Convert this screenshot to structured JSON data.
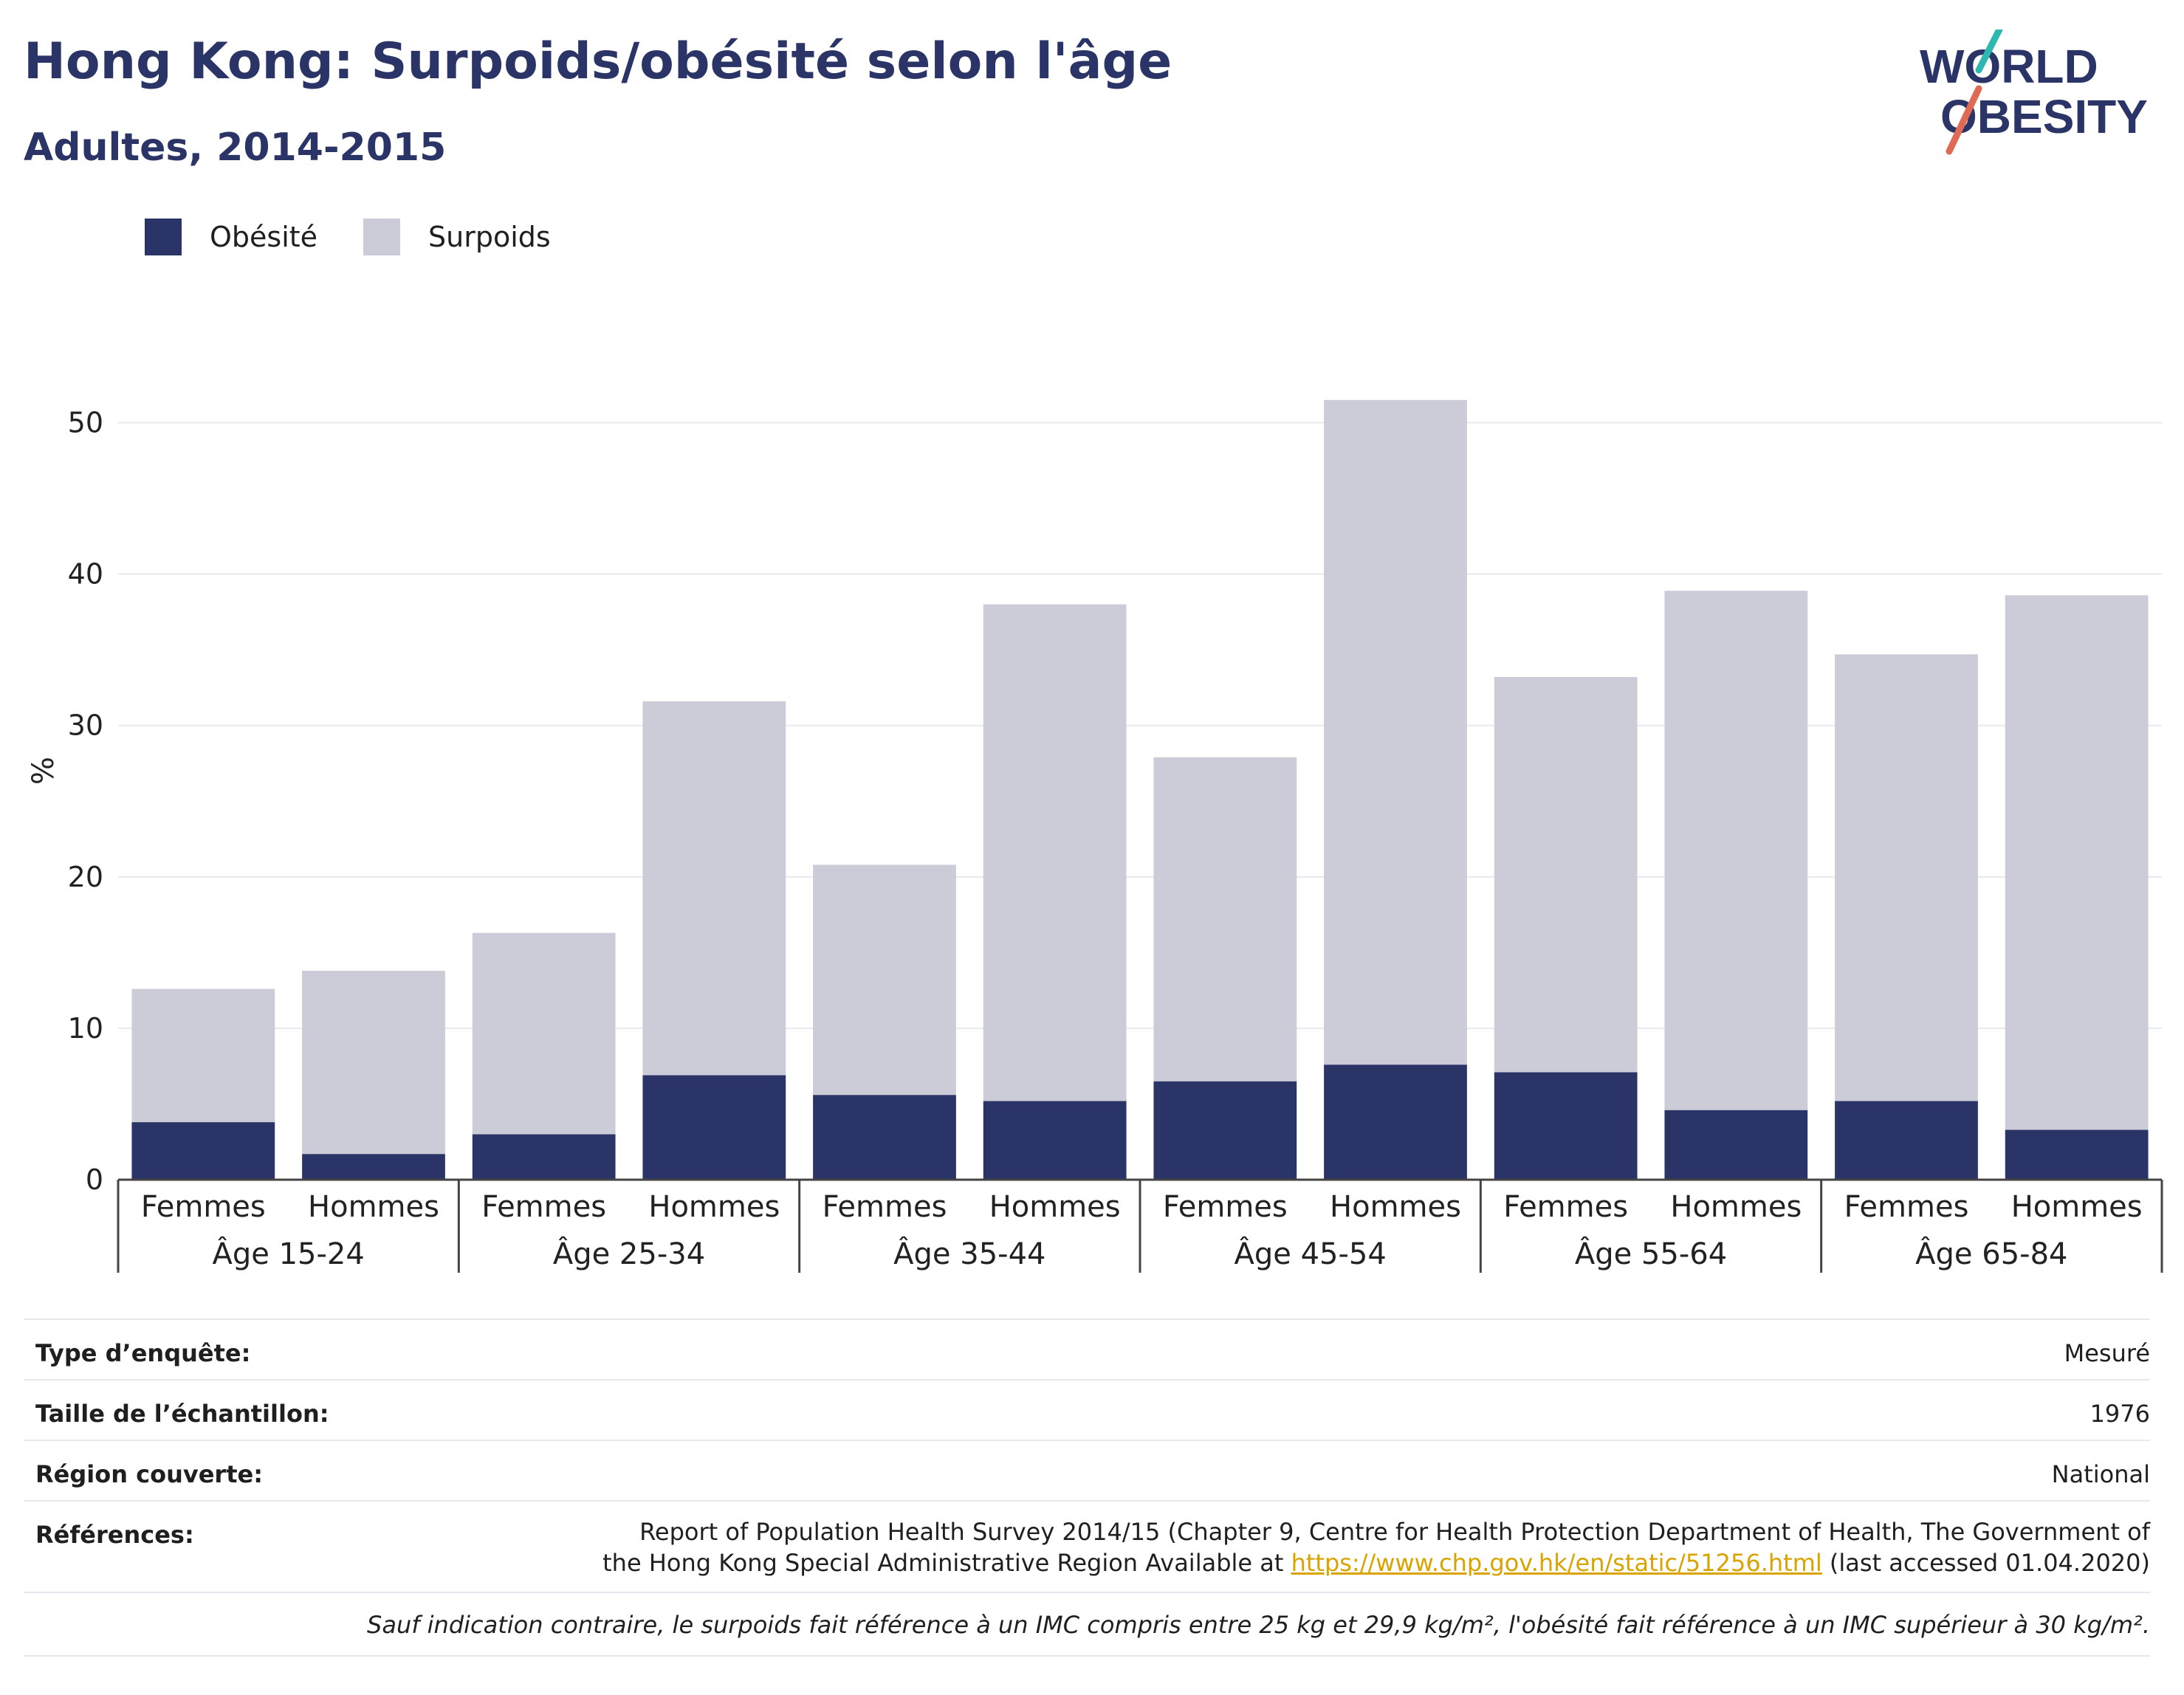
{
  "header": {
    "title": "Hong Kong: Surpoids/obésité selon l'âge",
    "subtitle": "Adultes, 2014-2015"
  },
  "logo": {
    "line1": "WORLD",
    "line2": "OBESITY"
  },
  "legend": [
    {
      "label": "Obésité",
      "color": "#2b3466"
    },
    {
      "label": "Surpoids",
      "color": "#cbccd8"
    }
  ],
  "chart_data": {
    "type": "bar",
    "stacked": true,
    "ylabel": "%",
    "ylim": [
      0,
      55
    ],
    "yticks": [
      0,
      10,
      20,
      30,
      40,
      50
    ],
    "grid": true,
    "legend_position": "top-left",
    "groups": [
      "Âge 15-24",
      "Âge 25-34",
      "Âge 35-44",
      "Âge 45-54",
      "Âge 55-64",
      "Âge 65-84"
    ],
    "categories": [
      "Femmes",
      "Hommes",
      "Femmes",
      "Hommes",
      "Femmes",
      "Hommes",
      "Femmes",
      "Hommes",
      "Femmes",
      "Hommes",
      "Femmes",
      "Hommes"
    ],
    "series": [
      {
        "name": "Obésité",
        "color": "#2b3466",
        "values": [
          3.8,
          1.7,
          3.0,
          6.9,
          5.6,
          5.2,
          6.5,
          7.6,
          7.1,
          4.6,
          5.2,
          3.3
        ]
      },
      {
        "name": "Surpoids",
        "color": "#cbccd8",
        "values": [
          8.8,
          12.1,
          13.3,
          24.7,
          15.2,
          32.8,
          21.4,
          43.9,
          26.1,
          34.3,
          29.5,
          35.3
        ]
      }
    ]
  },
  "meta": {
    "survey_type": {
      "label": "Type d’enquête:",
      "value": "Mesuré"
    },
    "sample_size": {
      "label": "Taille de l’échantillon:",
      "value": "1976"
    },
    "region": {
      "label": "Région couverte:",
      "value": "National"
    },
    "references": {
      "label": "Références:",
      "text_before": "Report of Population Health Survey 2014/15 (Chapter 9, Centre for Health Protection Department of Health, The Government of the Hong Kong Special Administrative Region Available at ",
      "link": "https://www.chp.gov.hk/en/static/51256.html",
      "text_after": " (last accessed 01.04.2020)"
    },
    "note": "Sauf indication contraire, le surpoids fait référence à un IMC compris entre 25 kg et 29,9 kg/m², l'obésité fait référence à un IMC supérieur à 30 kg/m²."
  }
}
